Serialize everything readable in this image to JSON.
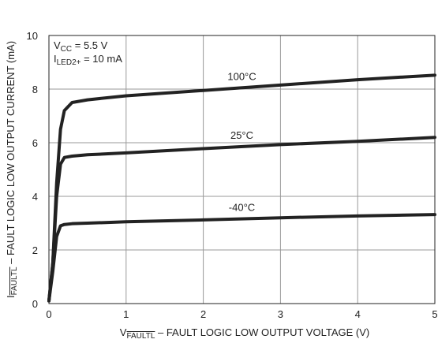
{
  "chart_data": {
    "type": "line",
    "x": [
      0,
      0.05,
      0.1,
      0.15,
      0.2,
      0.3,
      0.5,
      1,
      2,
      3,
      4,
      5
    ],
    "series": [
      {
        "name": "100°C",
        "color": "#222222",
        "values": [
          0.1,
          1.5,
          4.5,
          6.5,
          7.2,
          7.5,
          7.6,
          7.75,
          7.95,
          8.15,
          8.35,
          8.52
        ]
      },
      {
        "name": "25°C",
        "color": "#222222",
        "values": [
          0.1,
          1.5,
          4.0,
          5.2,
          5.45,
          5.5,
          5.55,
          5.62,
          5.78,
          5.93,
          6.05,
          6.2
        ]
      },
      {
        "name": "-40°C",
        "color": "#222222",
        "values": [
          0.1,
          1.2,
          2.5,
          2.9,
          2.95,
          2.98,
          3.0,
          3.05,
          3.12,
          3.2,
          3.27,
          3.32
        ]
      }
    ],
    "xlim": [
      0,
      5
    ],
    "xticks": [
      0,
      1,
      2,
      3,
      4,
      5
    ],
    "ylim": [
      0,
      10
    ],
    "yticks": [
      0,
      2,
      4,
      6,
      8,
      10
    ],
    "grid": true,
    "x_label": {
      "main": "V",
      "sub": "FAULTL",
      "rest": " – FAULT LOGIC LOW OUTPUT VOLTAGE (V)"
    },
    "y_label": {
      "main": "I",
      "sub": "FAULTL",
      "rest": " – FAULT LOGIC LOW OUTPUT CURRENT (mA)"
    },
    "conditions": [
      {
        "main": "V",
        "sub": "CC",
        "rest": " = 5.5 V"
      },
      {
        "main": "I",
        "sub": "LED2+",
        "rest": " = 10 mA"
      }
    ]
  }
}
